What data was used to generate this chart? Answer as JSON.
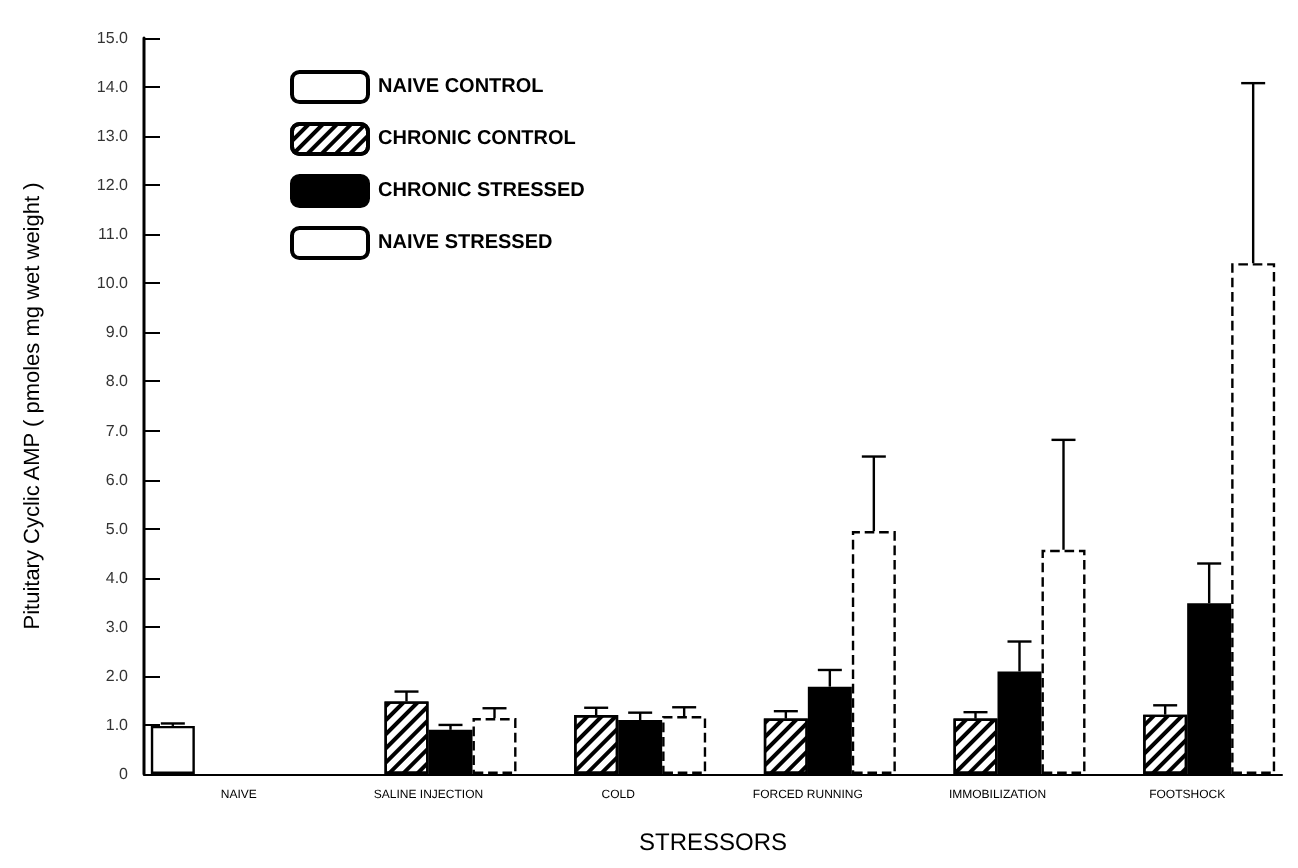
{
  "chart_data": {
    "type": "bar",
    "xlabel": "STRESSORS",
    "ylabel": "Pituitary Cyclic AMP ( pmoles mg wet weight )",
    "categories": [
      "NAIVE",
      "SALINE INJECTION",
      "COLD",
      "FORCED RUNNING",
      "IMMOBILIZATION",
      "FOOTSHOCK"
    ],
    "series": [
      {
        "name": "NAIVE CONTROL",
        "color": "#ffffff",
        "values": [
          0.98,
          null,
          null,
          null,
          null,
          null
        ],
        "errors": [
          0.05,
          null,
          null,
          null,
          null,
          null
        ]
      },
      {
        "name": "CHRONIC CONTROL",
        "color": "#ffffff",
        "values": [
          null,
          1.48,
          1.2,
          1.13,
          1.13,
          1.21
        ],
        "errors": [
          null,
          0.2,
          0.15,
          0.15,
          0.13,
          0.19
        ]
      },
      {
        "name": "CHRONIC STRESSED",
        "color": "#000000",
        "values": [
          null,
          0.9,
          1.1,
          1.78,
          2.09,
          3.48
        ],
        "errors": [
          null,
          0.1,
          0.15,
          0.34,
          0.61,
          0.81
        ]
      },
      {
        "name": "NAIVE STRESSED",
        "color": "#ffffff",
        "values": [
          null,
          1.14,
          1.18,
          4.95,
          4.57,
          10.41
        ],
        "errors": [
          null,
          0.2,
          0.18,
          1.52,
          2.24,
          3.67
        ]
      }
    ],
    "ylim": [
      0,
      15
    ],
    "yticks": [
      0,
      {
        "value": 1,
        "label": "1.0"
      },
      {
        "value": 2,
        "label": "2.0"
      },
      {
        "value": 3,
        "label": "3.0"
      },
      {
        "value": 4,
        "label": "4.0"
      },
      {
        "value": 5,
        "label": "5.0"
      },
      {
        "value": 6,
        "label": "6.0"
      },
      {
        "value": 7,
        "label": "7.0"
      },
      {
        "value": 8,
        "label": "8.0"
      },
      {
        "value": 9,
        "label": "9.0"
      },
      {
        "value": 10,
        "label": "10.0"
      },
      {
        "value": 11,
        "label": "11.0"
      },
      {
        "value": 12,
        "label": "12.0"
      },
      {
        "value": 13,
        "label": "13.0"
      },
      {
        "value": 14,
        "label": "14.0"
      },
      {
        "value": 15,
        "label": "15.0"
      }
    ],
    "legend": "top left",
    "grid": false
  }
}
